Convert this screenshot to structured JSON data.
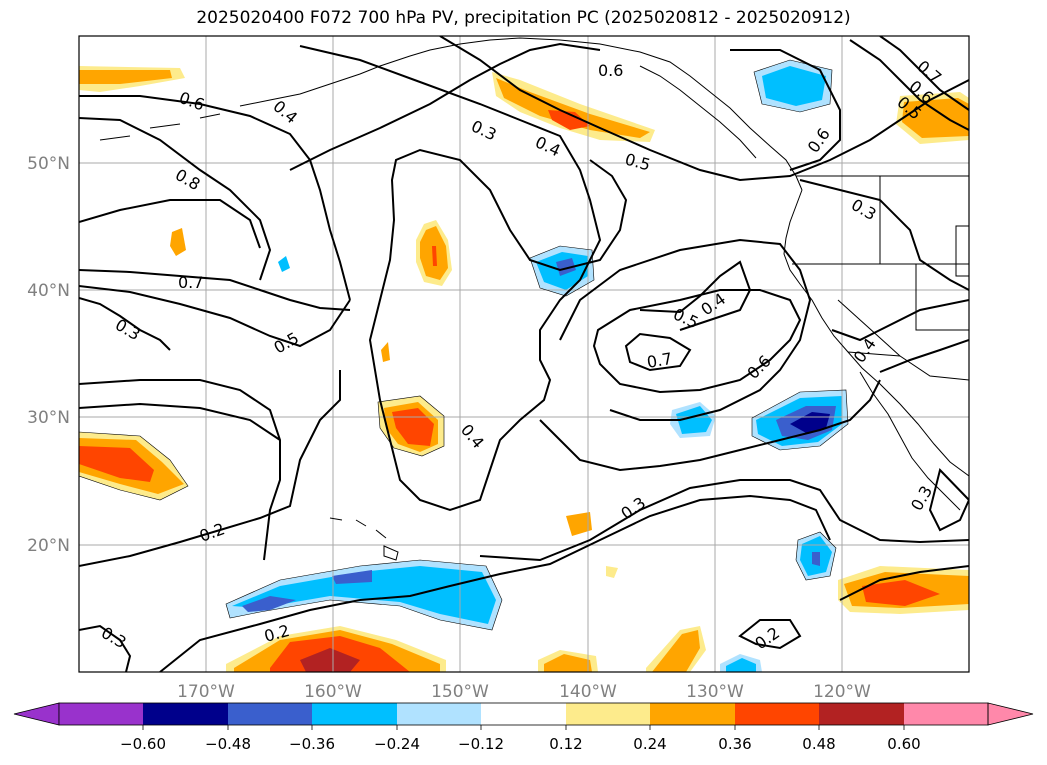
{
  "title": "2025020400 F072 700 hPa PV, precipitation PC (2025020812 - 2025020912)",
  "map": {
    "lon_labels": [
      "170°W",
      "160°W",
      "150°W",
      "140°W",
      "130°W",
      "120°W"
    ],
    "lat_labels": [
      "50°N",
      "40°N",
      "30°N",
      "20°N"
    ],
    "label_color": "#808080",
    "grid_color": "#a9a9a9"
  },
  "contours": {
    "labels": [
      "0.6",
      "0.4",
      "0.8",
      "0.7",
      "0.3",
      "0.5",
      "0.3",
      "0.4",
      "0.5",
      "0.6",
      "0.6",
      "0.7",
      "0.6",
      "0.5",
      "0.3",
      "0.4",
      "0.5",
      "0.7",
      "0.6",
      "0.4",
      "0.4",
      "0.3",
      "0.2",
      "0.2",
      "0.3",
      "0.2",
      "0.3"
    ]
  },
  "colorbar": {
    "tick_labels": [
      "−0.60",
      "−0.48",
      "−0.36",
      "−0.24",
      "−0.12",
      "0.12",
      "0.24",
      "0.36",
      "0.48",
      "0.60"
    ],
    "colors": [
      "#9932cc",
      "#00008b",
      "#3a5fcd",
      "#00bfff",
      "#b0e2ff",
      "#ffffff",
      "#fdeb8c",
      "#ffa500",
      "#ff4500",
      "#b22222",
      "#ff88aa"
    ]
  }
}
